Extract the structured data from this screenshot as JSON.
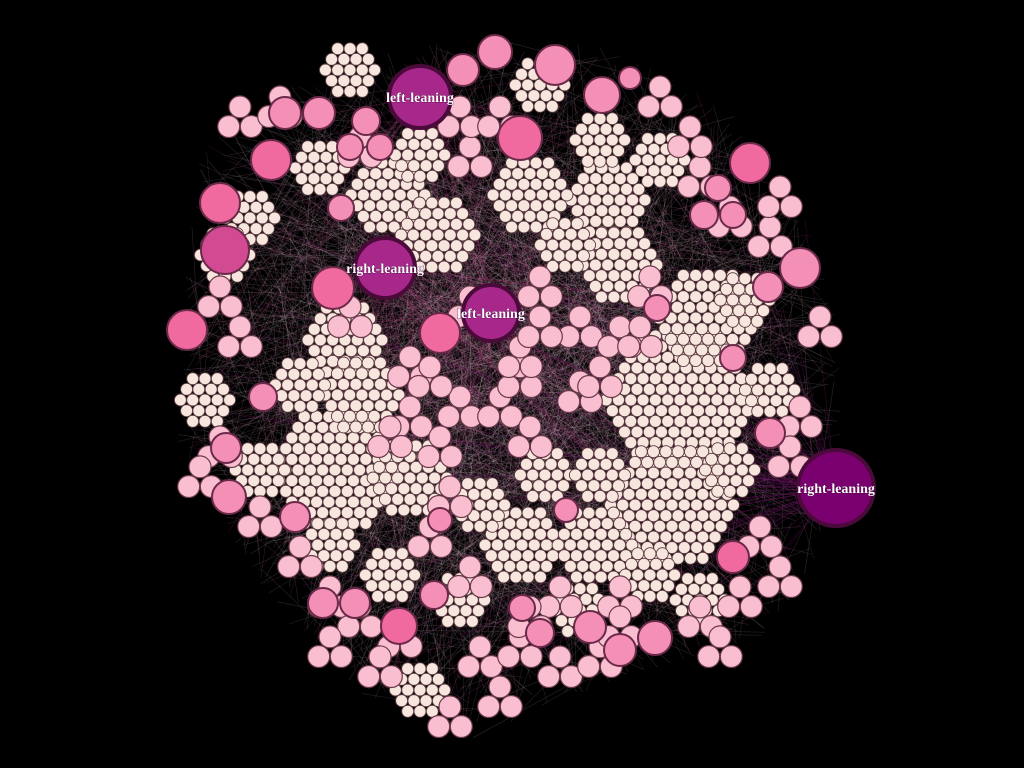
{
  "graph": {
    "background": "#000000",
    "edge_colors": [
      "#ffffff",
      "#ffd6e4",
      "#f3a6c6",
      "#b0307a",
      "#7a1070"
    ],
    "node_palette": {
      "tiny": "#f7e6de",
      "light": "#f9bfd1",
      "medium": "#f48fb6",
      "strong": "#f06aa0",
      "mid_purple": "#d24a92",
      "purple": "#a7288a",
      "dark_purple": "#7a006f"
    },
    "hubs": [
      {
        "label": "left-leaning",
        "color": "#a7288a"
      },
      {
        "label": "right-leaning",
        "color": "#a7288a"
      },
      {
        "label": "left-leaning",
        "color": "#a7288a"
      },
      {
        "label": "right-leaning",
        "color": "#7a006f"
      }
    ]
  }
}
